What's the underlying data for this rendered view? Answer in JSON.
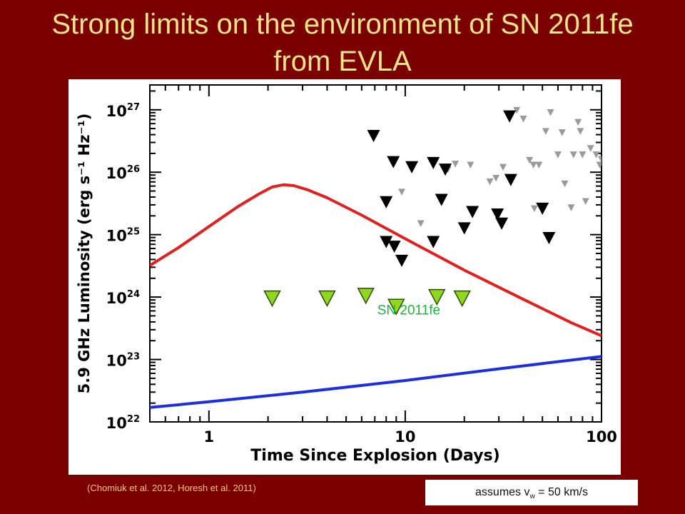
{
  "slide": {
    "title_line1": "Strong limits on the environment of SN 2011fe",
    "title_line2": "from EVLA",
    "citation": "(Chomiuk et al. 2012,   Horesh et al. 2011)",
    "assumption_prefix": "assumes v",
    "assumption_sub": "w",
    "assumption_suffix": " = 50 km/s"
  },
  "colors": {
    "background": "#7b0000",
    "title": "#f5e38a",
    "citation": "#f2cc6e",
    "red_model": "#e41f1f",
    "blue_model": "#1b2fe0",
    "sn2011fe_marker": "#8fd81e",
    "sn2011fe_label": "#18b83a",
    "detections_black": "#000000",
    "detections_gray": "#9a9a9a"
  },
  "chart_data": {
    "type": "scatter",
    "xlabel": "Time Since Explosion (Days)",
    "ylabel": "5.9 GHz Luminosity (erg s⁻¹ Hz⁻¹)",
    "xscale": "log",
    "yscale": "log",
    "xlim": [
      0.5,
      100
    ],
    "ylim": [
      1e+22,
      2.5e+27
    ],
    "xticks": [
      1,
      10,
      100
    ],
    "xtick_labels": [
      "1",
      "10",
      "100"
    ],
    "yticks": [
      1e+22,
      1e+23,
      1e+24,
      1e+25,
      1e+26,
      1e+27
    ],
    "ytick_labels": [
      {
        "base": "10",
        "exp": "22"
      },
      {
        "base": "10",
        "exp": "23"
      },
      {
        "base": "10",
        "exp": "24"
      },
      {
        "base": "10",
        "exp": "25"
      },
      {
        "base": "10",
        "exp": "26"
      },
      {
        "base": "10",
        "exp": "27"
      }
    ],
    "annotations": [
      {
        "text": "SN 2011fe",
        "x": 10.5,
        "y": 6.3e+23
      }
    ],
    "curves": [
      {
        "color": "red",
        "x": [
          0.5,
          0.7,
          1.0,
          1.4,
          1.8,
          2.1,
          2.4,
          2.7,
          3.2,
          4,
          6,
          10,
          20,
          40,
          70,
          100
        ],
        "y": [
          3.2e+24,
          6.2e+24,
          1.35e+25,
          2.8e+25,
          4.5e+25,
          5.8e+25,
          6.3e+25,
          6.1e+25,
          5.2e+25,
          3.9e+25,
          2.05e+25,
          8.6e+24,
          2.7e+24,
          9.2e+23,
          3.9e+23,
          2.4e+23
        ]
      },
      {
        "color": "blue",
        "x": [
          0.5,
          1,
          3,
          10,
          30,
          100
        ],
        "y": [
          1.7e+22,
          2.1e+22,
          3e+22,
          4.6e+22,
          7.1e+22,
          1.12e+23
        ]
      }
    ],
    "series": [
      {
        "marker": "green-triangle-large",
        "points": [
          [
            2.1,
            9.5e+23
          ],
          [
            4.0,
            9.5e+23
          ],
          [
            6.3,
            1.05e+24
          ],
          [
            9.0,
            7e+23
          ],
          [
            14.5,
            1e+24
          ],
          [
            19.5,
            9.5e+23
          ]
        ]
      },
      {
        "marker": "black-triangle",
        "points": [
          [
            6.9,
            3.8e+26
          ],
          [
            8.0,
            3.3e+25
          ],
          [
            8.0,
            7.6e+24
          ],
          [
            8.7,
            1.45e+26
          ],
          [
            8.8,
            6.4e+24
          ],
          [
            9.6,
            3.8e+24
          ],
          [
            10.8,
            1.2e+26
          ],
          [
            13.9,
            1.4e+26
          ],
          [
            13.9,
            7.6e+24
          ],
          [
            15.3,
            3.6e+25
          ],
          [
            16.0,
            1.1e+26
          ],
          [
            20.0,
            1.26e+25
          ],
          [
            22.0,
            2.3e+25
          ],
          [
            29.5,
            2.1e+25
          ],
          [
            31.0,
            1.5e+25
          ],
          [
            34.0,
            7.8e+26
          ],
          [
            34.5,
            7.5e+25
          ],
          [
            50.0,
            2.6e+25
          ],
          [
            54.0,
            8.8e+24
          ]
        ]
      },
      {
        "marker": "gray-triangle-small",
        "points": [
          [
            9.6,
            4.8e+25
          ],
          [
            12.0,
            1.5e+25
          ],
          [
            16.5,
            1.1e+26
          ],
          [
            18.0,
            1.35e+26
          ],
          [
            21.5,
            1.3e+26
          ],
          [
            27.0,
            7e+25
          ],
          [
            29.0,
            8e+25
          ],
          [
            31.5,
            1.2e+26
          ],
          [
            37.0,
            9.8e+26
          ],
          [
            40.0,
            7.1e+26
          ],
          [
            43.0,
            1.55e+26
          ],
          [
            45.0,
            1.3e+26
          ],
          [
            45.5,
            2.6e+25
          ],
          [
            48.0,
            1.3e+26
          ],
          [
            52.0,
            4.5e+26
          ],
          [
            55.0,
            9e+26
          ],
          [
            60.0,
            1.9e+26
          ],
          [
            63.0,
            4.3e+26
          ],
          [
            65.0,
            6.5e+25
          ],
          [
            70.0,
            2.7e+25
          ],
          [
            72.0,
            1.9e+26
          ],
          [
            76.0,
            6.3e+26
          ],
          [
            78.0,
            4.5e+26
          ],
          [
            80.0,
            1.9e+26
          ],
          [
            83.0,
            3.4e+25
          ],
          [
            88.0,
            2.4e+26
          ],
          [
            94.0,
            1.9e+26
          ],
          [
            98.0,
            1.3e+26
          ],
          [
            100.0,
            1.6e+26
          ]
        ]
      }
    ]
  }
}
